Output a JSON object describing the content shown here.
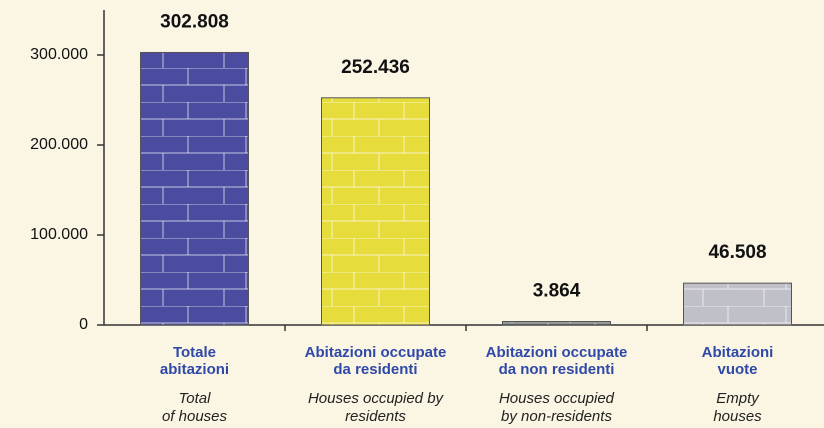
{
  "chart_data": {
    "type": "bar",
    "categories": [
      [
        "Totale",
        "abitazioni"
      ],
      [
        "Abitazioni occupate",
        "da residenti"
      ],
      [
        "Abitazioni occupate",
        "da  non residenti"
      ],
      [
        "Abitazioni",
        "vuote"
      ]
    ],
    "category_translations": [
      [
        "Total",
        "of houses"
      ],
      [
        "Houses occupied by",
        "residents"
      ],
      [
        "Houses occupied",
        "by non-residents"
      ],
      [
        "Empty",
        "houses"
      ]
    ],
    "values": [
      302808,
      252436,
      3864,
      46508
    ],
    "value_labels": [
      "302.808",
      "252.436",
      "3.864",
      "46.508"
    ],
    "colors": [
      "#4b4ba0",
      "#e6dd3c",
      "#5f6460",
      "#bfc0c8"
    ],
    "ylim": [
      0,
      350000
    ],
    "yticks": [
      {
        "value": 0,
        "label": "0"
      },
      {
        "value": 100000,
        "label": "100.000"
      },
      {
        "value": 200000,
        "label": "200.000"
      },
      {
        "value": 300000,
        "label": "300.000"
      }
    ],
    "grid": false
  }
}
